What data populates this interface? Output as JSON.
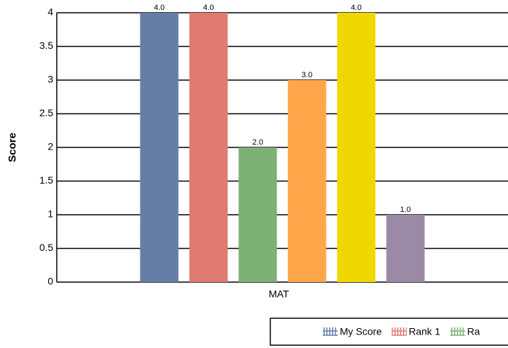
{
  "chart_data": {
    "type": "bar",
    "categories": [
      "MAT"
    ],
    "y_label": "Score",
    "series": [
      {
        "name": "My Score",
        "color": "#647ea6",
        "values": [
          4
        ],
        "value_labels": [
          "4.0"
        ]
      },
      {
        "name": "Rank 1",
        "color": "#e07a72",
        "values": [
          4
        ],
        "value_labels": [
          "4.0"
        ]
      },
      {
        "name": "Ra",
        "color": "#7db175",
        "values": [
          2
        ],
        "value_labels": [
          "2.0"
        ]
      },
      {
        "color": "#ffa64a",
        "values": [
          3
        ],
        "value_labels": [
          "3.0"
        ]
      },
      {
        "color": "#efd800",
        "values": [
          4
        ],
        "value_labels": [
          "4.0"
        ]
      },
      {
        "color": "#9b8aa5",
        "values": [
          1
        ],
        "value_labels": [
          "1.0"
        ]
      }
    ],
    "ylim": [
      0,
      4
    ],
    "yticks": [
      0,
      0.5,
      1,
      1.5,
      2,
      2.5,
      3,
      3.5,
      4
    ],
    "grid": true
  }
}
